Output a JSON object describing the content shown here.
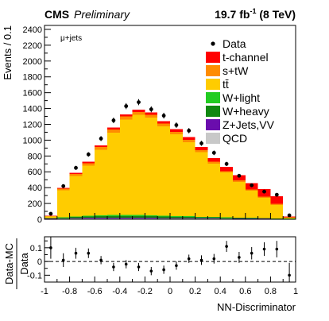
{
  "header": {
    "experiment": "CMS",
    "status": "Preliminary",
    "lumi_prefix": "19.7 fb",
    "lumi_exp": "-1",
    "lumi_suffix": " (8 TeV)"
  },
  "chart_data": [
    {
      "type": "bar",
      "stacked": true,
      "channel_label": "μ+jets",
      "ylabel": "Events / 0.1",
      "xlabel": "",
      "xlim": [
        -1,
        1
      ],
      "ylim": [
        0,
        2450
      ],
      "yticks": [
        0,
        200,
        400,
        600,
        800,
        1000,
        1200,
        1400,
        1600,
        1800,
        2000,
        2200,
        2400
      ],
      "bin_edges": [
        -1.0,
        -0.9,
        -0.8,
        -0.7,
        -0.6,
        -0.5,
        -0.4,
        -0.3,
        -0.2,
        -0.1,
        0.0,
        0.1,
        0.2,
        0.3,
        0.4,
        0.5,
        0.6,
        0.7,
        0.8,
        0.9,
        1.0
      ],
      "legend_position": "top-right",
      "legend": [
        {
          "label": "Data",
          "marker": "point"
        },
        {
          "label": "t-channel",
          "color": "#ff0000"
        },
        {
          "label": "s+tW",
          "color": "#ff8c00"
        },
        {
          "label": "tt̄",
          "color": "#ffcc00"
        },
        {
          "label": "W+light",
          "color": "#22cc22"
        },
        {
          "label": "W+heavy",
          "color": "#118811"
        },
        {
          "label": "Z+Jets,VV",
          "color": "#6a0dad"
        },
        {
          "label": "QCD",
          "color": "#c8c8c8"
        }
      ],
      "series": [
        {
          "name": "QCD",
          "color": "#c8c8c8",
          "values": [
            5,
            8,
            10,
            12,
            12,
            12,
            12,
            12,
            12,
            10,
            10,
            10,
            9,
            8,
            8,
            7,
            6,
            5,
            4,
            3
          ]
        },
        {
          "name": "Z+Jets,VV",
          "color": "#6a0dad",
          "values": [
            3,
            4,
            5,
            6,
            6,
            7,
            7,
            7,
            7,
            6,
            6,
            6,
            5,
            5,
            4,
            4,
            3,
            3,
            2,
            2
          ]
        },
        {
          "name": "W+heavy",
          "color": "#118811",
          "values": [
            5,
            10,
            14,
            18,
            20,
            22,
            22,
            22,
            20,
            18,
            16,
            14,
            12,
            10,
            8,
            7,
            6,
            5,
            4,
            2
          ]
        },
        {
          "name": "W+light",
          "color": "#22cc22",
          "values": [
            2,
            4,
            6,
            8,
            10,
            12,
            12,
            12,
            10,
            10,
            8,
            8,
            6,
            6,
            5,
            4,
            3,
            3,
            2,
            1
          ]
        },
        {
          "name": "tt̄",
          "color": "#ffcc00",
          "values": [
            20,
            340,
            510,
            635,
            830,
            1040,
            1205,
            1265,
            1235,
            1130,
            1035,
            935,
            815,
            675,
            565,
            450,
            345,
            255,
            170,
            12
          ]
        },
        {
          "name": "s+tW",
          "color": "#ff8c00",
          "values": [
            5,
            20,
            25,
            30,
            35,
            40,
            40,
            40,
            38,
            36,
            32,
            30,
            28,
            24,
            20,
            18,
            16,
            14,
            12,
            5
          ]
        },
        {
          "name": "t-channel",
          "color": "#ff0000",
          "values": [
            5,
            10,
            15,
            20,
            22,
            25,
            26,
            27,
            28,
            30,
            32,
            35,
            40,
            45,
            55,
            65,
            80,
            95,
            95,
            10
          ]
        }
      ],
      "data": {
        "name": "Data",
        "x": [
          -0.95,
          -0.85,
          -0.75,
          -0.65,
          -0.55,
          -0.45,
          -0.35,
          -0.25,
          -0.15,
          -0.05,
          0.05,
          0.15,
          0.25,
          0.35,
          0.45,
          0.55,
          0.65,
          0.75,
          0.85,
          0.95
        ],
        "y": [
          70,
          420,
          650,
          820,
          1020,
          1250,
          1430,
          1480,
          1390,
          1310,
          1190,
          1120,
          960,
          840,
          700,
          550,
          430,
          350,
          310,
          50
        ]
      }
    },
    {
      "type": "scatter",
      "ylabel_top": "Data-MC",
      "ylabel_bottom": "Data",
      "xlabel": "NN-Discriminator",
      "xlim": [
        -1,
        1
      ],
      "ylim": [
        -0.15,
        0.18
      ],
      "yticks": [
        -0.1,
        0,
        0.1
      ],
      "ytick_labels": [
        "-0.1",
        "0",
        "0.1"
      ],
      "xticks": [
        -1,
        -0.8,
        -0.6,
        -0.4,
        -0.2,
        0,
        0.2,
        0.4,
        0.6,
        0.8,
        1
      ],
      "xtick_labels": [
        "-1",
        "-0.8",
        "-0.6",
        "-0.4",
        "-0.2",
        "0",
        "0.2",
        "0.4",
        "0.6",
        "0.8",
        "1"
      ],
      "reference_line": 0,
      "x": [
        -0.95,
        -0.85,
        -0.75,
        -0.65,
        -0.55,
        -0.45,
        -0.35,
        -0.25,
        -0.15,
        -0.05,
        0.05,
        0.15,
        0.25,
        0.35,
        0.45,
        0.55,
        0.65,
        0.75,
        0.85,
        0.95
      ],
      "y": [
        0.1,
        0.01,
        0.06,
        0.06,
        0.01,
        -0.04,
        -0.02,
        -0.04,
        -0.07,
        -0.06,
        -0.03,
        0.02,
        0.01,
        0.02,
        0.11,
        0.03,
        0.06,
        0.09,
        0.09,
        -0.1
      ],
      "err": [
        0.08,
        0.05,
        0.04,
        0.035,
        0.03,
        0.03,
        0.03,
        0.03,
        0.03,
        0.03,
        0.03,
        0.03,
        0.035,
        0.035,
        0.04,
        0.04,
        0.045,
        0.05,
        0.06,
        0.09
      ]
    }
  ]
}
